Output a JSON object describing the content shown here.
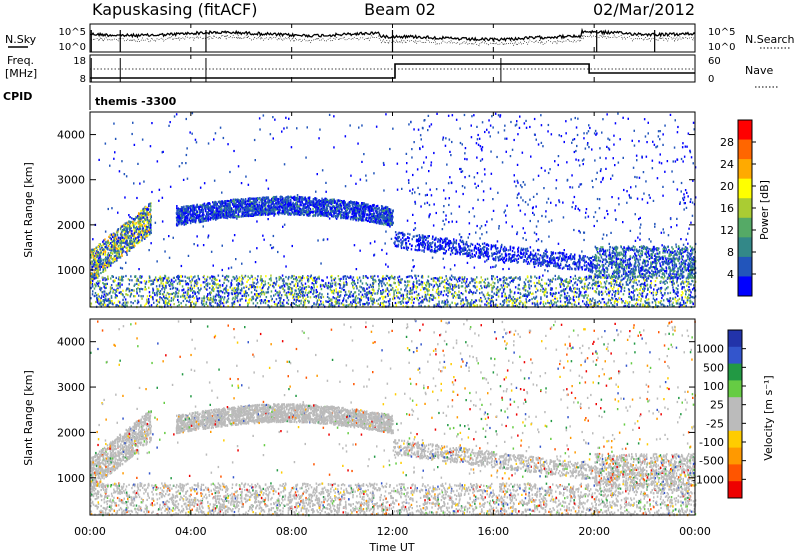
{
  "header": {
    "station": "Kapuskasing (fitACF)",
    "beam": "Beam 02",
    "date": "02/Mar/2012"
  },
  "top_panels": {
    "nsky_label": "N.Sky",
    "nsky_ticks": [
      "10^5",
      "10^0"
    ],
    "nsearch_label": "N.Search",
    "nsearch_ticks": [
      "10^5",
      "10^0"
    ],
    "freq_label_1": "Freq.",
    "freq_label_2": "[MHz]",
    "freq_ticks": [
      "18",
      "8"
    ],
    "nave_label": "Nave",
    "nave_ticks": [
      "60",
      "0"
    ],
    "cpid_label": "CPID",
    "cpid_value": "themis -3300"
  },
  "chart_data": [
    {
      "type": "heatmap",
      "ylabel": "Slant Range [km]",
      "y_ticks": [
        1000,
        2000,
        3000,
        4000
      ],
      "ylim": [
        180,
        4500
      ],
      "xlim_hours": [
        0,
        24
      ],
      "colorbar_label": "Power [dB]",
      "colorbar_ticks": [
        "28",
        "24",
        "20",
        "16",
        "12",
        "8",
        "4"
      ],
      "colorbar_colors": [
        "#ff0000",
        "#ff6600",
        "#ffaa00",
        "#ffff00",
        "#aacc33",
        "#55aa66",
        "#338888",
        "#2255bb",
        "#0000ff"
      ]
    },
    {
      "type": "heatmap",
      "ylabel": "Slant Range [km]",
      "y_ticks": [
        1000,
        2000,
        3000,
        4000
      ],
      "ylim": [
        180,
        4500
      ],
      "xlim_hours": [
        0,
        24
      ],
      "colorbar_label": "Velocity [m s⁻¹]",
      "colorbar_ticks": [
        "1000",
        "500",
        "100",
        "25",
        "-25",
        "-100",
        "-500",
        "-1000"
      ],
      "colorbar_colors": [
        "#2233aa",
        "#3355cc",
        "#229944",
        "#66cc44",
        "#bbbbbb",
        "#bbbbbb",
        "#ffcc00",
        "#ff9900",
        "#ff5500",
        "#ee0000"
      ]
    }
  ],
  "x_axis": {
    "ticks": [
      "00:00",
      "04:00",
      "08:00",
      "12:00",
      "16:00",
      "20:00",
      "00:00"
    ],
    "label": "Time UT"
  }
}
